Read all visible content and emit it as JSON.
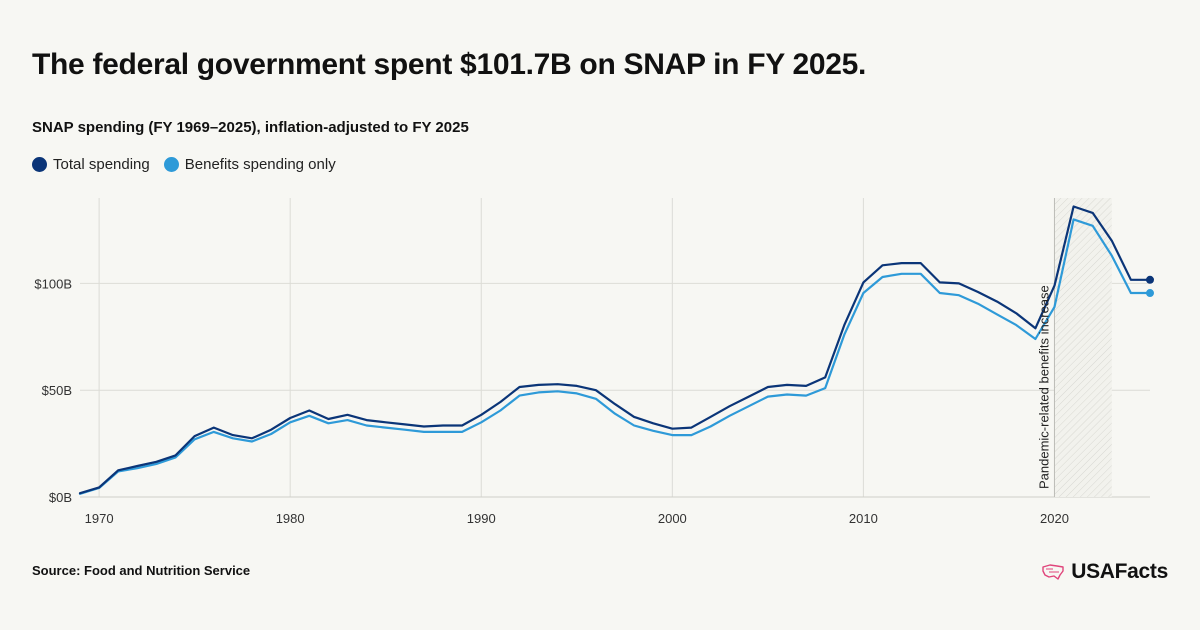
{
  "header": {
    "title": "The federal government spent $101.7B on SNAP in FY 2025.",
    "subtitle": "SNAP spending (FY 1969–2025), inflation-adjusted to FY 2025"
  },
  "footer": {
    "source": "Source: Food and Nutrition Service",
    "logo_text": "USAFacts"
  },
  "colors": {
    "total": "#0b3578",
    "benefits": "#2e9ad8",
    "grid": "#dcdcd6",
    "logo_accent": "#e0457b"
  },
  "chart_data": {
    "type": "line",
    "title": "",
    "xlabel": "",
    "ylabel": "",
    "xlim": [
      1969,
      2025
    ],
    "ylim": [
      0,
      140
    ],
    "x_ticks": [
      1970,
      1980,
      1990,
      2000,
      2010,
      2020
    ],
    "y_ticks": [
      0,
      50,
      100
    ],
    "y_tick_labels": [
      "$0B",
      "$50B",
      "$100B"
    ],
    "grid": true,
    "legend_position": "top-left",
    "annotation": {
      "text": "Pandemic-related benefits increase",
      "x_start": 2020,
      "x_end": 2023
    },
    "x": [
      1969,
      1970,
      1971,
      1972,
      1973,
      1974,
      1975,
      1976,
      1977,
      1978,
      1979,
      1980,
      1981,
      1982,
      1983,
      1984,
      1985,
      1986,
      1987,
      1988,
      1989,
      1990,
      1991,
      1992,
      1993,
      1994,
      1995,
      1996,
      1997,
      1998,
      1999,
      2000,
      2001,
      2002,
      2003,
      2004,
      2005,
      2006,
      2007,
      2008,
      2009,
      2010,
      2011,
      2012,
      2013,
      2014,
      2015,
      2016,
      2017,
      2018,
      2019,
      2020,
      2021,
      2022,
      2023,
      2024,
      2025
    ],
    "series": [
      {
        "name": "Total spending",
        "values": [
          1.8,
          4.5,
          12.5,
          14.5,
          16.5,
          19.5,
          28.5,
          32.5,
          29,
          27.5,
          31.5,
          37,
          40.5,
          36.5,
          38.5,
          36,
          35,
          34,
          33,
          33.5,
          33.5,
          38.5,
          44.5,
          51.5,
          52.5,
          52.8,
          52,
          50,
          43.5,
          37.5,
          34.5,
          32,
          32.5,
          37.5,
          42.5,
          47,
          51.5,
          52.5,
          52,
          56,
          80.5,
          100.5,
          108.5,
          109.5,
          109.5,
          100.5,
          100,
          96,
          91.5,
          86,
          79,
          99,
          136,
          133,
          120,
          101.7,
          101.7
        ]
      },
      {
        "name": "Benefits spending only",
        "values": [
          1.5,
          4.2,
          12,
          13.5,
          15.5,
          18.5,
          27,
          30.5,
          27.5,
          26,
          29.5,
          35,
          38,
          34.5,
          36,
          33.5,
          32.5,
          31.5,
          30.5,
          30.5,
          30.5,
          35,
          40.5,
          47.5,
          49,
          49.5,
          48.5,
          46,
          39,
          33.5,
          31,
          29,
          29,
          33,
          38,
          42.5,
          47,
          48,
          47.5,
          51,
          76,
          95.5,
          103,
          104.5,
          104.5,
          95.5,
          94.5,
          90.5,
          85.5,
          80.5,
          74,
          89,
          130,
          127,
          113,
          95.5,
          95.5
        ]
      }
    ]
  }
}
